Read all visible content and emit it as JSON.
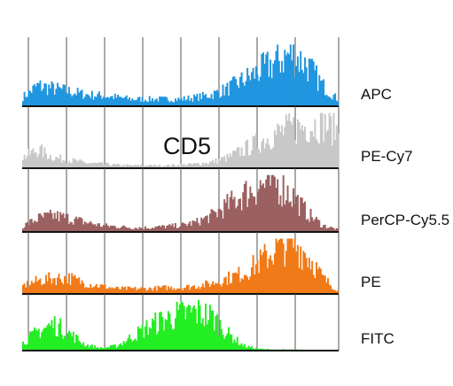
{
  "chart_data": {
    "type": "area",
    "title": "",
    "marker": "CD5",
    "xlabel": "",
    "ylabel": "",
    "x": [
      0,
      0.05,
      0.1,
      0.15,
      0.2,
      0.25,
      0.3,
      0.35,
      0.4,
      0.45,
      0.5,
      0.55,
      0.6,
      0.65,
      0.7,
      0.75,
      0.8,
      0.85,
      0.9,
      0.95,
      1
    ],
    "xlim": [
      0,
      1
    ],
    "ylim": [
      0,
      1
    ],
    "grid": true,
    "series": [
      {
        "name": "APC",
        "color": "#2196e0",
        "values": [
          0.15,
          0.35,
          0.3,
          0.25,
          0.2,
          0.18,
          0.15,
          0.12,
          0.12,
          0.12,
          0.12,
          0.15,
          0.2,
          0.3,
          0.45,
          0.6,
          0.75,
          0.9,
          0.7,
          0.35,
          0.1
        ]
      },
      {
        "name": "PE-Cy7",
        "color": "#c8c8c8",
        "values": [
          0.2,
          0.35,
          0.2,
          0.15,
          0.1,
          0.08,
          0.06,
          0.05,
          0.05,
          0.05,
          0.06,
          0.08,
          0.12,
          0.2,
          0.35,
          0.5,
          0.65,
          0.75,
          0.8,
          0.85,
          0.7
        ]
      },
      {
        "name": "PerCP-Cy5.5",
        "color": "#9b6060",
        "values": [
          0.1,
          0.25,
          0.3,
          0.25,
          0.18,
          0.12,
          0.1,
          0.08,
          0.08,
          0.1,
          0.12,
          0.18,
          0.3,
          0.5,
          0.7,
          0.85,
          0.9,
          0.7,
          0.35,
          0.12,
          0.04
        ]
      },
      {
        "name": "PE",
        "color": "#f07a18",
        "values": [
          0.15,
          0.25,
          0.3,
          0.3,
          0.2,
          0.15,
          0.1,
          0.1,
          0.1,
          0.12,
          0.12,
          0.15,
          0.2,
          0.3,
          0.4,
          0.6,
          0.85,
          1,
          0.75,
          0.3,
          0.05
        ]
      },
      {
        "name": "FITC",
        "color": "#22ee22",
        "values": [
          0.15,
          0.4,
          0.55,
          0.35,
          0.12,
          0.05,
          0.1,
          0.3,
          0.5,
          0.65,
          0.75,
          0.8,
          0.7,
          0.35,
          0.1,
          0.03,
          0.02,
          0.02,
          0.01,
          0.01,
          0
        ]
      }
    ]
  }
}
